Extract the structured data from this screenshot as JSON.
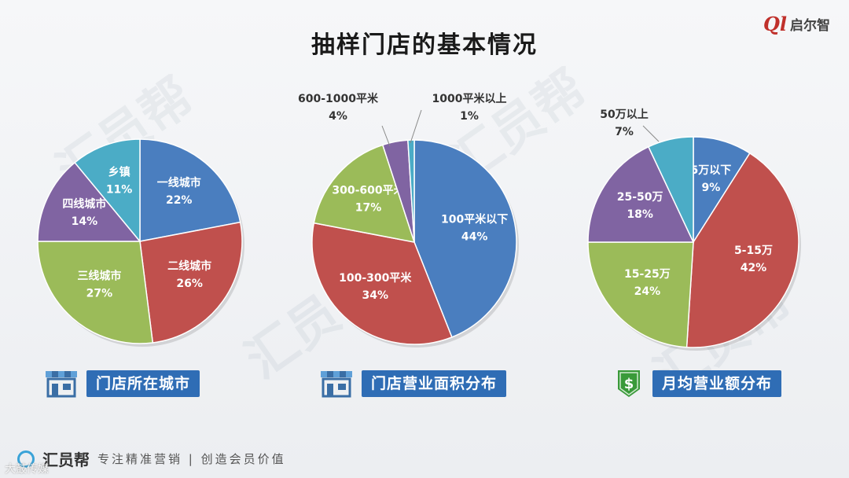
{
  "title": "抽样门店的基本情况",
  "logo": {
    "mark": "Ql",
    "text": "启尔智"
  },
  "watermark_text": "汇员帮",
  "chart_data": [
    {
      "type": "pie",
      "caption": "门店所在城市",
      "icon": "store-icon",
      "labels": [
        "一线城市",
        "二线城市",
        "三线城市",
        "四线城市",
        "乡镇"
      ],
      "values": [
        22,
        26,
        27,
        14,
        11
      ],
      "display": [
        "22%",
        "26%",
        "27%",
        "14%",
        "11%"
      ],
      "colors": [
        "#4a7ebf",
        "#c0504d",
        "#9bbb59",
        "#8064a2",
        "#4bacc6"
      ]
    },
    {
      "type": "pie",
      "caption": "门店营业面积分布",
      "icon": "store-icon",
      "labels": [
        "100平米以下",
        "100-300平米",
        "300-600平米",
        "600-1000平米",
        "1000平米以上"
      ],
      "values": [
        44,
        34,
        17,
        4,
        1
      ],
      "display": [
        "44%",
        "34%",
        "17%",
        "4%",
        "1%"
      ],
      "colors": [
        "#4a7ebf",
        "#c0504d",
        "#9bbb59",
        "#8064a2",
        "#4bacc6"
      ]
    },
    {
      "type": "pie",
      "caption": "月均营业额分布",
      "icon": "dollar-shield-icon",
      "labels": [
        "5万以下",
        "5-15万",
        "15-25万",
        "25-50万",
        "50万以上"
      ],
      "values": [
        9,
        42,
        24,
        18,
        7
      ],
      "display": [
        "9%",
        "42%",
        "24%",
        "18%",
        "7%"
      ],
      "colors": [
        "#4a7ebf",
        "#c0504d",
        "#9bbb59",
        "#8064a2",
        "#4bacc6"
      ]
    }
  ],
  "footer": {
    "brand": "汇员帮",
    "slogan": "专注精准营销 | 创造会员价值"
  },
  "corner_watermark": "大鼓传媒"
}
